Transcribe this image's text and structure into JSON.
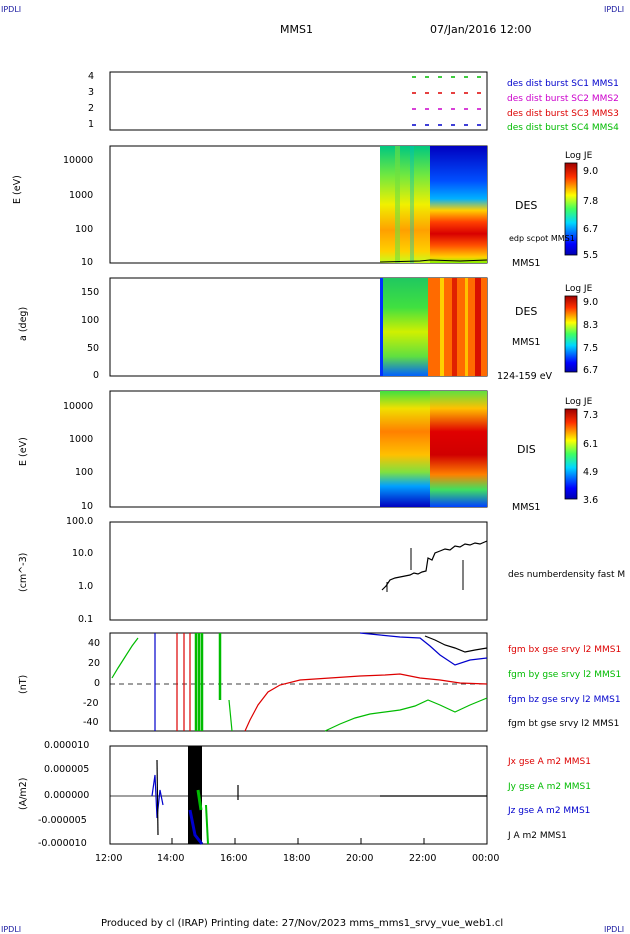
{
  "header": {
    "corner_left_top": "IPDLI",
    "corner_right_top": "IPDLI",
    "corner_left_bottom": "IPDLI",
    "corner_right_bottom": "IPDLI",
    "spacecraft": "MMS1",
    "datetime": "07/Jan/2016 12:00"
  },
  "footer": {
    "text": "Produced by cl (IRAP)   Printing date: 27/Nov/2023   mms_mms1_srvy_vue_web1.cl"
  },
  "panels": {
    "burst": {
      "yticks": [
        "4",
        "3",
        "2",
        "1"
      ],
      "legend": [
        {
          "text": "des dist burst SC1 MMS1",
          "color": "#0000cc"
        },
        {
          "text": "des dist burst SC2 MMS2",
          "color": "#cc00cc"
        },
        {
          "text": "des dist burst SC3 MMS3",
          "color": "#dd0000"
        },
        {
          "text": "des dist burst SC4 MMS4",
          "color": "#00bb00"
        }
      ]
    },
    "des_energy": {
      "ylabel": "E (eV)",
      "yticks": [
        "10000",
        "1000",
        "100",
        "10"
      ],
      "right_label": "DES",
      "right_sublabel": "edp scpot MMS1",
      "right_bottom": "MMS1",
      "colorbar": {
        "title": "Log JE",
        "ticks": [
          "9.0",
          "7.8",
          "6.7",
          "5.5"
        ]
      }
    },
    "des_pitch": {
      "ylabel": "a (deg)",
      "yticks": [
        "150",
        "100",
        "50",
        "0"
      ],
      "right_label": "DES",
      "right_sublabel": "MMS1",
      "right_bottom": "124-159 eV",
      "colorbar": {
        "title": "Log JE",
        "ticks": [
          "9.0",
          "8.3",
          "7.5",
          "6.7"
        ]
      }
    },
    "dis_energy": {
      "ylabel": "E (eV)",
      "yticks": [
        "10000",
        "1000",
        "100",
        "10"
      ],
      "right_label": "DIS",
      "right_bottom": "MMS1",
      "colorbar": {
        "title": "Log JE",
        "ticks": [
          "7.3",
          "6.1",
          "4.9",
          "3.6"
        ]
      }
    },
    "density": {
      "ylabel": "(cm^-3)",
      "yticks": [
        "100.0",
        "10.0",
        "1.0",
        "0.1"
      ],
      "legend": "des numberdensity fast M"
    },
    "bfield": {
      "ylabel": "(nT)",
      "yticks": [
        "40",
        "20",
        "0",
        "-20",
        "-40"
      ],
      "legend": [
        {
          "text": "fgm bx gse srvy l2 MMS1",
          "color": "#dd0000"
        },
        {
          "text": "fgm by gse srvy l2 MMS1",
          "color": "#00bb00"
        },
        {
          "text": "fgm bz gse srvy l2 MMS1",
          "color": "#0000cc"
        },
        {
          "text": "fgm bt gse srvy l2 MMS1",
          "color": "#000000"
        }
      ]
    },
    "current": {
      "ylabel": "(A/m2)",
      "yticks": [
        "0.000010",
        "0.000005",
        "0.000000",
        "-0.000005",
        "-0.000010"
      ],
      "legend": [
        {
          "text": "Jx gse A m2 MMS1",
          "color": "#dd0000"
        },
        {
          "text": "Jy gse A m2 MMS1",
          "color": "#00bb00"
        },
        {
          "text": "Jz gse A m2 MMS1",
          "color": "#0000cc"
        },
        {
          "text": "J A m2 MMS1",
          "color": "#000000"
        }
      ]
    }
  },
  "xaxis": {
    "ticks": [
      "12:00",
      "14:00",
      "16:00",
      "18:00",
      "20:00",
      "22:00",
      "00:00"
    ]
  },
  "chart_data": [
    {
      "type": "scatter",
      "title": "",
      "ylabel": "",
      "yticks": [
        "1",
        "2",
        "3",
        "4"
      ],
      "series": [
        {
          "name": "des dist burst SC1 MMS1",
          "y": 1
        },
        {
          "name": "des dist burst SC2 MMS2",
          "y": 2
        },
        {
          "name": "des dist burst SC3 MMS3",
          "y": 3
        },
        {
          "name": "des dist burst SC4 MMS4",
          "y": 4
        }
      ],
      "x_range": [
        "22:45",
        "00:00"
      ]
    },
    {
      "type": "heatmap",
      "ylabel": "E (eV)",
      "y_scale": "log",
      "ylim": [
        10,
        30000
      ],
      "colorbar_title": "Log JE",
      "colorbar_range": [
        5.5,
        9.0
      ],
      "data_start": "20:40"
    },
    {
      "type": "heatmap",
      "ylabel": "a (deg)",
      "ylim": [
        0,
        180
      ],
      "colorbar_title": "Log JE",
      "colorbar_range": [
        6.7,
        9.0
      ],
      "energy_band": "124-159 eV",
      "data_start": "20:40"
    },
    {
      "type": "heatmap",
      "ylabel": "E (eV)",
      "y_scale": "log",
      "ylim": [
        10,
        30000
      ],
      "colorbar_title": "Log JE",
      "colorbar_range": [
        3.6,
        7.3
      ],
      "data_start": "20:40"
    },
    {
      "type": "line",
      "ylabel": "(cm^-3)",
      "y_scale": "log",
      "ylim": [
        0.1,
        100
      ],
      "series": [
        {
          "name": "des numberdensity fast M",
          "x": [
            "20:45",
            "21:00",
            "21:30",
            "22:00",
            "22:15",
            "22:30",
            "23:00",
            "23:30",
            "00:00"
          ],
          "y": [
            0.8,
            1.3,
            1.6,
            1.8,
            7,
            10,
            15,
            20,
            22
          ]
        }
      ]
    },
    {
      "type": "line",
      "ylabel": "(nT)",
      "ylim": [
        -50,
        50
      ],
      "series": [
        {
          "name": "fgm bx gse srvy l2 MMS1",
          "x": [
            "16:15",
            "17:00",
            "18:00",
            "20:00",
            "22:00",
            "23:00",
            "00:00"
          ],
          "y": [
            -50,
            -20,
            0,
            2,
            5,
            -5,
            0
          ]
        },
        {
          "name": "fgm by gse srvy l2 MMS1",
          "x": [
            "12:00",
            "12:30",
            "13:00",
            "19:00",
            "21:00",
            "22:00",
            "00:00"
          ],
          "y": [
            0,
            20,
            50,
            -50,
            -35,
            -20,
            -10
          ]
        },
        {
          "name": "fgm bz gse srvy l2 MMS1",
          "x": [
            "20:00",
            "21:00",
            "22:00",
            "23:00",
            "00:00"
          ],
          "y": [
            50,
            48,
            45,
            30,
            20
          ]
        },
        {
          "name": "fgm bt gse srvy l2 MMS1",
          "x": [
            "22:00",
            "22:30",
            "23:00",
            "23:30",
            "00:00"
          ],
          "y": [
            48,
            40,
            35,
            30,
            28
          ]
        }
      ]
    },
    {
      "type": "line",
      "ylabel": "(A/m2)",
      "ylim": [
        -1e-05,
        1e-05
      ],
      "series": [
        {
          "name": "Jx gse A m2 MMS1",
          "values_note": ""
        },
        {
          "name": "Jy gse A m2 MMS1"
        },
        {
          "name": "Jz gse A m2 MMS1"
        },
        {
          "name": "J A m2 MMS1"
        }
      ]
    }
  ]
}
